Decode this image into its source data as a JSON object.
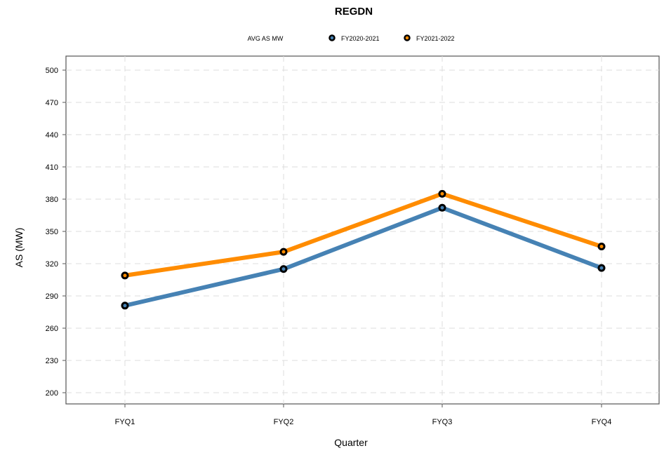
{
  "chart_data": {
    "type": "line",
    "title": "REGDN",
    "xlabel": "Quarter",
    "ylabel": "AS (MW)",
    "legend_title": "AVG AS MW",
    "legend_position": "top",
    "categories": [
      "FYQ1",
      "FYQ2",
      "FYQ3",
      "FYQ4"
    ],
    "ylim": [
      200,
      500
    ],
    "yticks": [
      200,
      230,
      260,
      290,
      320,
      350,
      380,
      410,
      440,
      470,
      500
    ],
    "grid": true,
    "series": [
      {
        "name": "FY2020-2021",
        "color": "#4682B4",
        "values": [
          281,
          315,
          372,
          316
        ]
      },
      {
        "name": "FY2021-2022",
        "color": "#FF8C00",
        "values": [
          309,
          331,
          385,
          336
        ]
      }
    ]
  }
}
